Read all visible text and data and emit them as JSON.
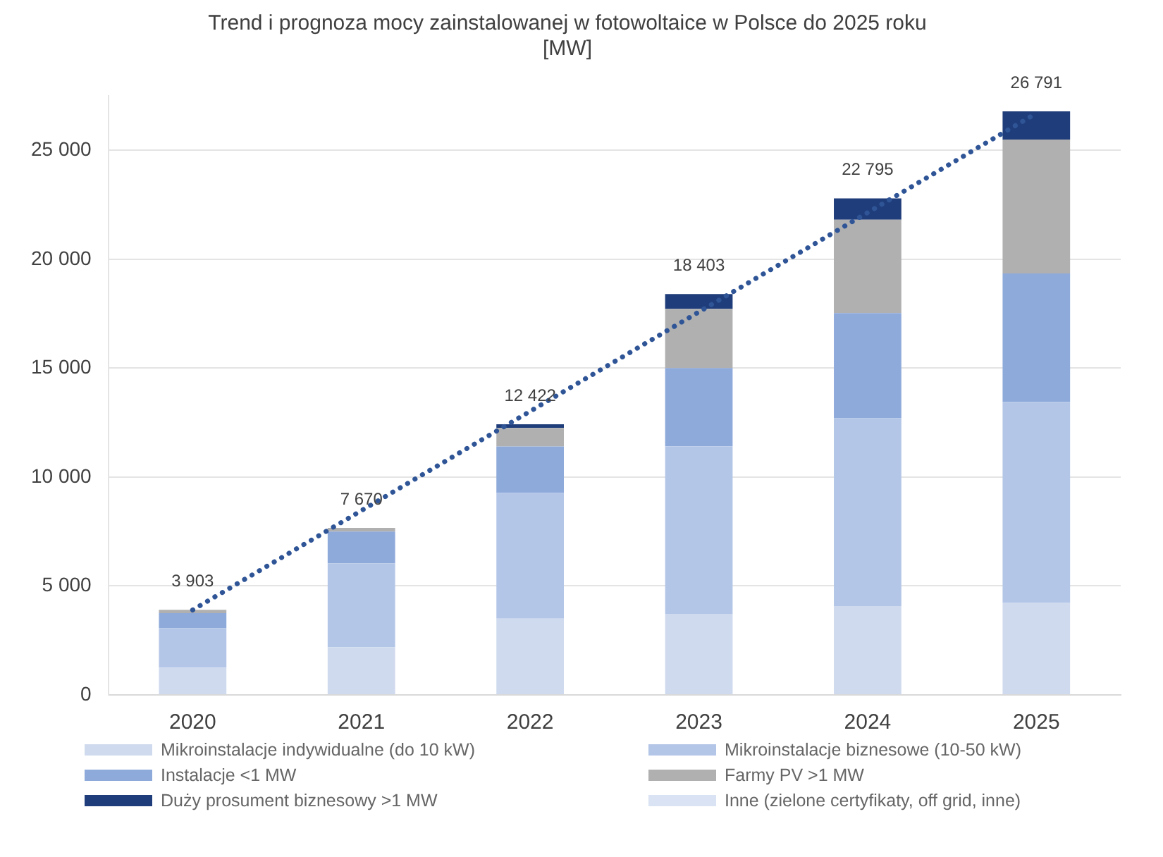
{
  "chart_data": {
    "type": "bar",
    "stacked": true,
    "title": "Trend i prognoza mocy zainstalowanej w fotowoltaice w Polsce do 2025 roku\n[MW]",
    "categories": [
      "2020",
      "2021",
      "2022",
      "2023",
      "2024",
      "2025"
    ],
    "series": [
      {
        "name": "Mikroinstalacje indywidualne (do 10 kW)",
        "color": "#cfdaee",
        "values": [
          1250,
          2190,
          3500,
          3720,
          4080,
          4220
        ]
      },
      {
        "name": "Mikroinstalacje biznesowe (10-50 kW)",
        "color": "#b4c6e7",
        "values": [
          1810,
          3850,
          5772,
          7693,
          8620,
          9231
        ]
      },
      {
        "name": "Instalacje <1 MW",
        "color": "#8eaadb",
        "values": [
          693,
          1460,
          2130,
          3590,
          4825,
          5900
        ]
      },
      {
        "name": "Farmy PV >1 MW",
        "color": "#b0b0b0",
        "values": [
          150,
          170,
          850,
          2720,
          4290,
          6140
        ]
      },
      {
        "name": "Duży prosument biznesowy >1 MW",
        "color": "#1f3d7a",
        "values": [
          0,
          0,
          170,
          680,
          980,
          1300
        ]
      },
      {
        "name": "Inne (zielone certyfikaty, off grid, inne)",
        "color": "#dae3f3",
        "values": [
          0,
          0,
          0,
          0,
          0,
          0
        ]
      },
      {
        "type": "line",
        "color": "#2f5597",
        "values": [
          3900,
          null,
          null,
          null,
          null,
          26700
        ],
        "line_style": "dotted",
        "marker": "none"
      }
    ],
    "totals": [
      "3 903",
      "7 670",
      "12 422",
      "18 403",
      "22 795",
      "26 791"
    ],
    "ylim": [
      0,
      27500
    ],
    "yticks": [
      0,
      {
        "value": 5000,
        "label": "5 000"
      },
      {
        "value": 10000,
        "label": "10 000"
      },
      {
        "value": 15000,
        "label": "15 000"
      },
      {
        "value": 20000,
        "label": "20 000"
      },
      {
        "value": 25000,
        "label": "25 000"
      }
    ],
    "grid": "y",
    "legend": "bottom"
  }
}
